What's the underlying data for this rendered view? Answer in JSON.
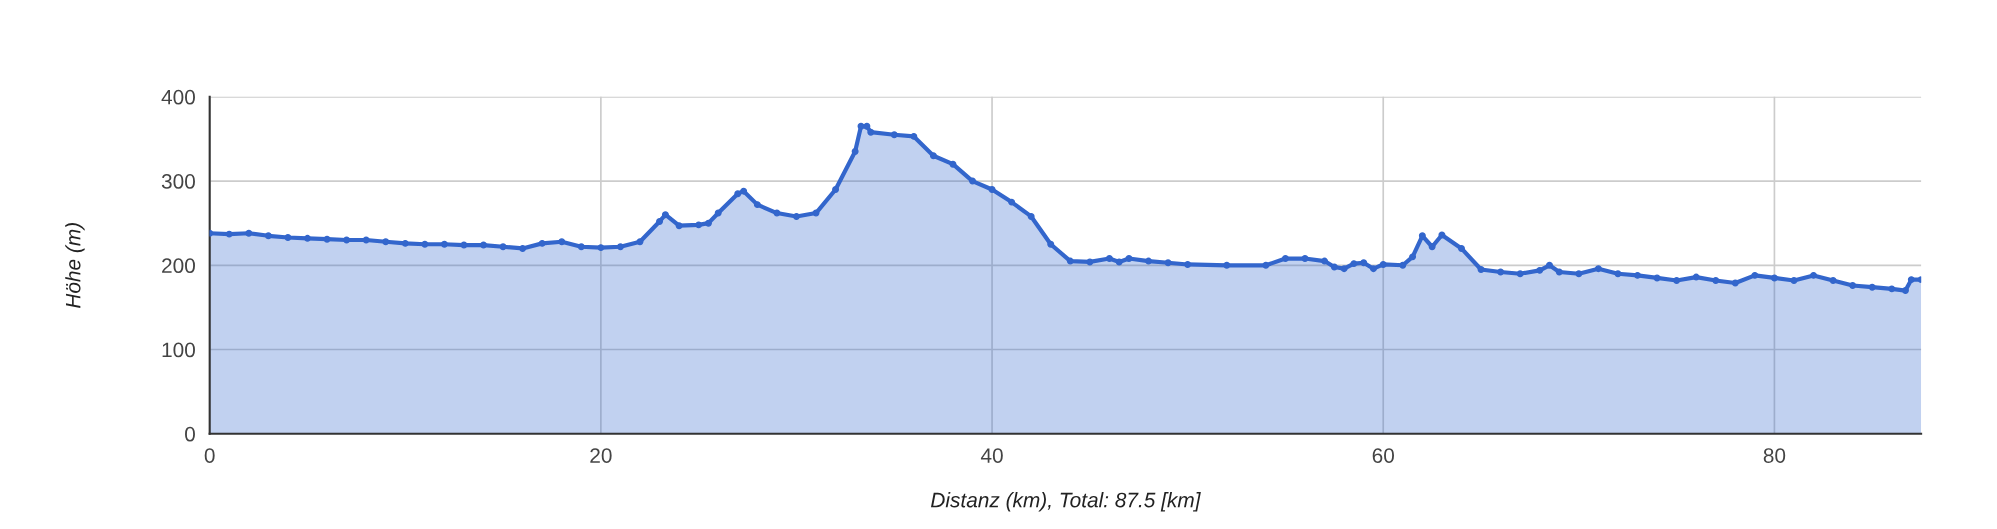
{
  "chart_data": {
    "type": "area",
    "xlabel": "Distanz (km), Total: 87.5 [km]",
    "ylabel": "Höhe (m)",
    "x": [
      0,
      1,
      2,
      3,
      4,
      5,
      6,
      7,
      8,
      9,
      10,
      11,
      12,
      13,
      14,
      15,
      16,
      17,
      18,
      19,
      20,
      21,
      22,
      23,
      23.3,
      24,
      25,
      25.5,
      26,
      27,
      27.3,
      28,
      29,
      30,
      31,
      32,
      33,
      33.3,
      33.6,
      33.8,
      35,
      36,
      37,
      38,
      39,
      40,
      41,
      42,
      43,
      44,
      45,
      46,
      46.5,
      47,
      48,
      49,
      50,
      52,
      54,
      55,
      56,
      57,
      57.5,
      58,
      58.5,
      59,
      59.5,
      60,
      61,
      61.5,
      62,
      62.5,
      63,
      64,
      65,
      66,
      67,
      68,
      68.5,
      69,
      70,
      71,
      72,
      73,
      74,
      75,
      76,
      77,
      78,
      79,
      80,
      81,
      82,
      83,
      84,
      85,
      86,
      86.7,
      87,
      87.5
    ],
    "series": [
      {
        "color": "#3366cc",
        "values": [
          238,
          237,
          238,
          235,
          233,
          232,
          231,
          230,
          230,
          228,
          226,
          225,
          225,
          224,
          224,
          222,
          220,
          226,
          228,
          222,
          221,
          222,
          228,
          252,
          260,
          247,
          248,
          250,
          262,
          285,
          288,
          272,
          262,
          258,
          262,
          290,
          335,
          365,
          365,
          358,
          355,
          353,
          330,
          320,
          300,
          290,
          275,
          258,
          225,
          205,
          204,
          208,
          204,
          208,
          205,
          203,
          201,
          200,
          200,
          208,
          208,
          205,
          198,
          196,
          202,
          203,
          196,
          201,
          200,
          210,
          235,
          222,
          236,
          220,
          195,
          192,
          190,
          194,
          200,
          192,
          190,
          196,
          190,
          188,
          185,
          182,
          186,
          182,
          179,
          188,
          185,
          182,
          188,
          182,
          176,
          174,
          172,
          170,
          183,
          183
        ]
      }
    ],
    "xlim": [
      0,
      87.5
    ],
    "xticks": [
      0,
      20,
      40,
      60,
      80
    ],
    "ylim": [
      0,
      400
    ],
    "yticks": [
      0,
      100,
      200,
      300,
      400
    ],
    "grid": true,
    "marker": "circle",
    "line_style": "solid"
  }
}
